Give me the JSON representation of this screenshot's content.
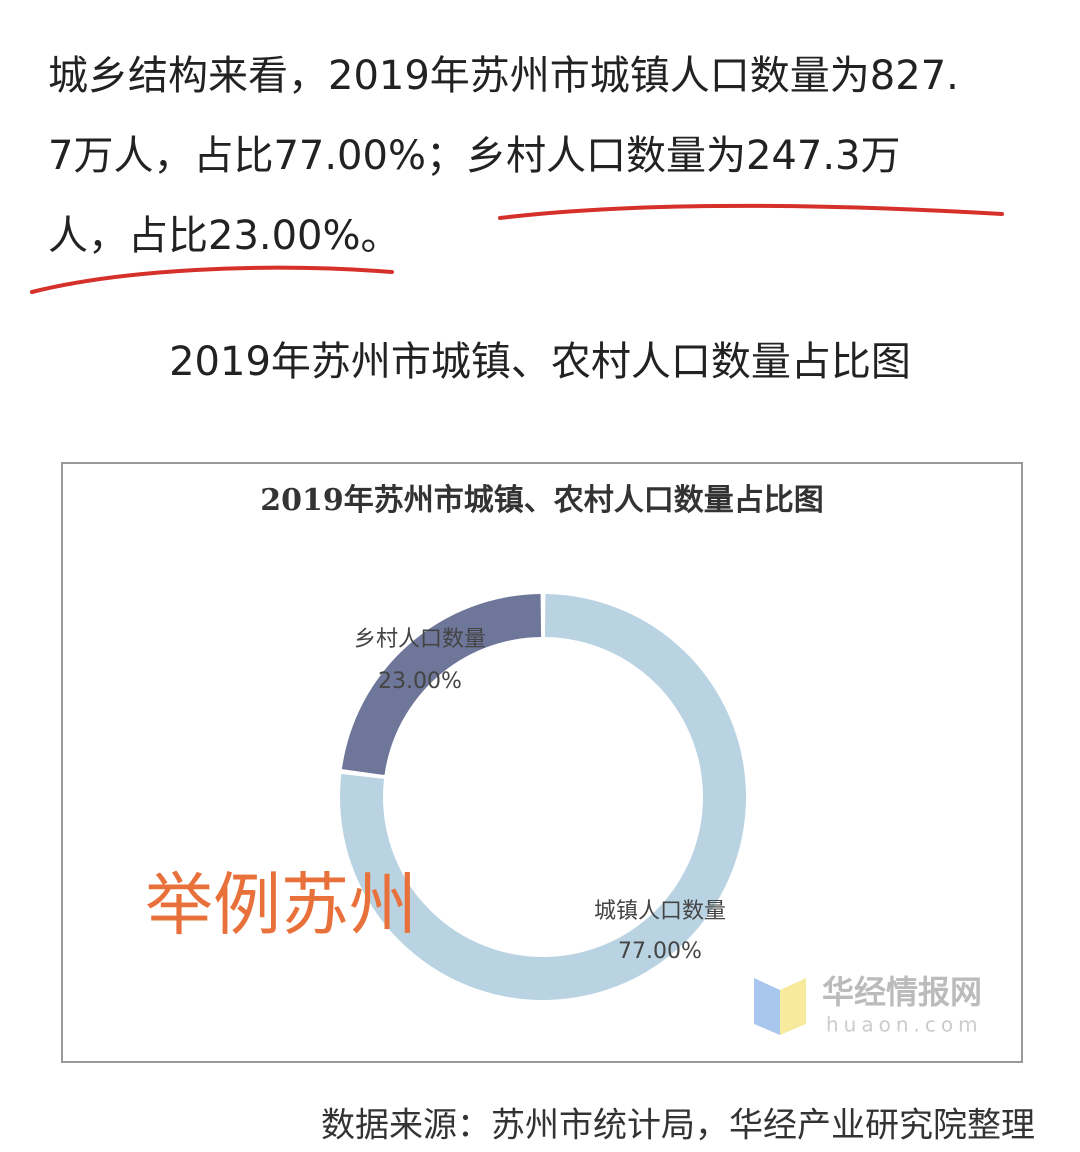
{
  "article": {
    "paragraph_lines": [
      "城乡结构来看，2019年苏州市城镇人口数量为827.",
      "7万人，占比77.00%；乡村人口数量为247.3万",
      "人，占比23.00%。"
    ],
    "caption": "2019年苏州市城镇、农村人口数量占比图",
    "source": "数据来源：苏州市统计局，华经产业研究院整理"
  },
  "chart_data": {
    "type": "pie",
    "donut": true,
    "title": "2019年苏州市城镇、农村人口数量占比图",
    "categories": [
      "乡村人口数量",
      "城镇人口数量"
    ],
    "values": [
      23,
      77
    ],
    "value_labels": [
      "23.00%",
      "77.00%"
    ],
    "colors": [
      "#6e7699",
      "#b9d3e3"
    ],
    "annotations": [
      "举例苏州"
    ],
    "watermark": {
      "name": "华经情报网",
      "url": "huaon.com"
    }
  }
}
